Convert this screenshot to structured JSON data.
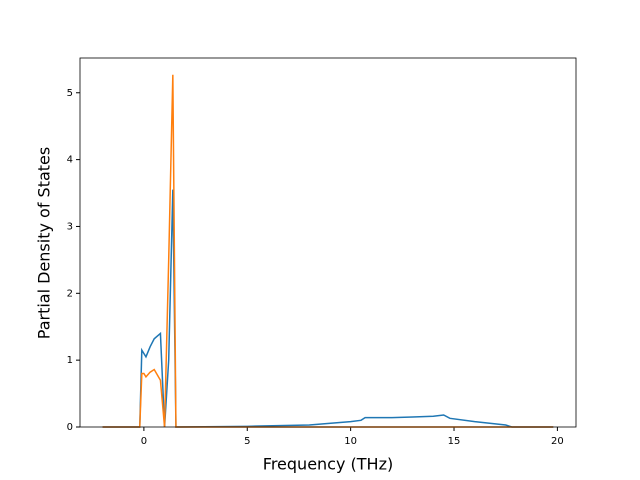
{
  "chart_data": {
    "type": "line",
    "xlabel": "Frequency (THz)",
    "ylabel": "Partial Density of States",
    "x": [
      -2,
      -0.2,
      -0.1,
      0,
      0.1,
      0.3,
      0.5,
      0.8,
      1.0,
      1.2,
      1.4,
      1.55,
      5,
      8,
      10,
      10.5,
      10.7,
      12,
      13,
      14,
      14.5,
      14.8,
      16,
      17.5,
      17.8,
      19.8
    ],
    "series": [
      {
        "color": "#1f77b4",
        "values": [
          0,
          0,
          1.15,
          1.1,
          1.05,
          1.2,
          1.32,
          1.4,
          0,
          1.0,
          3.55,
          0,
          0.01,
          0.03,
          0.08,
          0.1,
          0.14,
          0.14,
          0.15,
          0.16,
          0.18,
          0.13,
          0.08,
          0.03,
          0,
          0
        ]
      },
      {
        "color": "#ff7f0e",
        "values": [
          0,
          0,
          0.8,
          0.8,
          0.75,
          0.82,
          0.86,
          0.7,
          0,
          2.5,
          5.27,
          0,
          0,
          0,
          0,
          0,
          0,
          0,
          0,
          0,
          0,
          0,
          0,
          0,
          0,
          0
        ]
      }
    ],
    "xlim": [
      -3.09,
      20.9
    ],
    "xticks": [
      0,
      5,
      10,
      15,
      20
    ],
    "ylim": [
      0,
      5.52
    ],
    "yticks": [
      0,
      1,
      2,
      3,
      4,
      5
    ]
  }
}
